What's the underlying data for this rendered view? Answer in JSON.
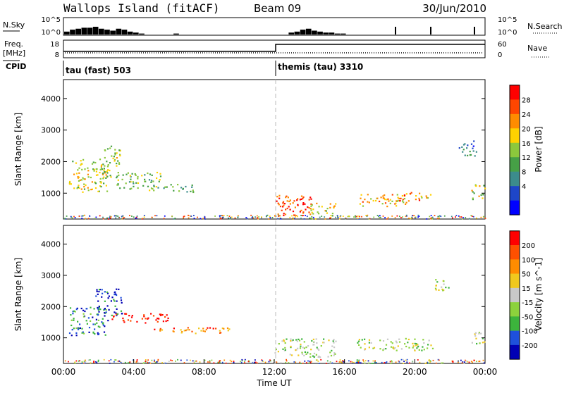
{
  "header": {
    "station": "Wallops Island (fitACF)",
    "beam": "Beam 09",
    "date": "30/Jun/2010"
  },
  "status_panels": {
    "nsky_label": "N.Sky",
    "nsearch_label": "N.Search",
    "nsky_ticks": [
      "10^5",
      "10^0"
    ],
    "nsearch_ticks": [
      "10^5",
      "10^0"
    ],
    "freq_label_line1": "Freq.",
    "freq_label_line2": "[MHz]",
    "freq_ticks": [
      "18",
      "8"
    ],
    "nave_label": "Nave",
    "nave_ticks": [
      "60",
      "0"
    ],
    "cpid_label": "CPID",
    "cpid_segments": [
      {
        "label": "tau (fast) 503",
        "start_hour": 0
      },
      {
        "label": "themis (tau) 3310",
        "start_hour": 12
      }
    ]
  },
  "colors": {
    "velocity_scale": [
      "#0000b4",
      "#1e50dc",
      "#3cb43c",
      "#8cd23c",
      "#c8c8c8",
      "#f0c81e",
      "#ff8c00",
      "#ff5000",
      "#ff0000"
    ],
    "power_scale": [
      "#0000ff",
      "#1e46c8",
      "#3c8c8c",
      "#46a046",
      "#8cc83c",
      "#ffd200",
      "#ff8c00",
      "#ff4600",
      "#ff0000"
    ]
  },
  "chart_data": [
    {
      "type": "heatmap",
      "quantity": "Power",
      "ylabel": "Slant Range [km]",
      "colorbar_label": "Power [dB]",
      "colorbar_ticks": [
        "28",
        "24",
        "20",
        "16",
        "12",
        "8",
        "4"
      ],
      "ylim": [
        180,
        4600
      ],
      "yticks": [
        "1000",
        "2000",
        "3000",
        "4000"
      ],
      "xlim_hours": [
        0,
        24
      ],
      "regions": [
        {
          "t0": 0.3,
          "t1": 2.5,
          "r0": 1050,
          "r1": 2100,
          "level": 0.55
        },
        {
          "t0": 2.2,
          "t1": 3.2,
          "r0": 1500,
          "r1": 2600,
          "level": 0.5
        },
        {
          "t0": 3.0,
          "t1": 5.5,
          "r0": 1100,
          "r1": 1700,
          "level": 0.45
        },
        {
          "t0": 5.5,
          "t1": 7.5,
          "r0": 1050,
          "r1": 1300,
          "level": 0.35
        },
        {
          "t0": 12.0,
          "t1": 14.2,
          "r0": 300,
          "r1": 1000,
          "level": 0.85
        },
        {
          "t0": 14.0,
          "t1": 15.5,
          "r0": 300,
          "r1": 700,
          "level": 0.6
        },
        {
          "t0": 16.7,
          "t1": 19.5,
          "r0": 600,
          "r1": 1000,
          "level": 0.65
        },
        {
          "t0": 19.0,
          "t1": 20.3,
          "r0": 700,
          "r1": 1050,
          "level": 0.8
        },
        {
          "t0": 20.3,
          "t1": 21.0,
          "r0": 800,
          "r1": 1000,
          "level": 0.6
        },
        {
          "t0": 23.2,
          "t1": 24.0,
          "r0": 800,
          "r1": 1300,
          "level": 0.55
        },
        {
          "t0": 22.5,
          "t1": 23.5,
          "r0": 2200,
          "r1": 2700,
          "level": 0.25
        }
      ]
    },
    {
      "type": "heatmap",
      "quantity": "Velocity",
      "ylabel": "Slant Range [km]",
      "colorbar_label": "Velocity [m s^-1]",
      "colorbar_ticks": [
        "200",
        "100",
        "50",
        "15",
        "-15",
        "-50",
        "-100",
        "-200"
      ],
      "ylim": [
        180,
        4600
      ],
      "yticks": [
        "1000",
        "2000",
        "3000",
        "4000"
      ],
      "xlim_hours": [
        0,
        24
      ],
      "xticks": [
        "00:00",
        "04:00",
        "08:00",
        "12:00",
        "16:00",
        "20:00",
        "00:00"
      ],
      "xlabel": "Time UT",
      "regions": [
        {
          "t0": 0.3,
          "t1": 2.5,
          "r0": 1100,
          "r1": 2000,
          "level": 0.2
        },
        {
          "t0": 1.8,
          "t1": 3.3,
          "r0": 1700,
          "r1": 2600,
          "level": 0.1
        },
        {
          "t0": 2.5,
          "t1": 6.0,
          "r0": 1500,
          "r1": 1800,
          "level": 0.95
        },
        {
          "t0": 5.0,
          "t1": 9.5,
          "r0": 1150,
          "r1": 1350,
          "level": 0.75
        },
        {
          "t0": 12.0,
          "t1": 15.5,
          "r0": 400,
          "r1": 1000,
          "level": 0.45
        },
        {
          "t0": 16.7,
          "t1": 21.0,
          "r0": 600,
          "r1": 1000,
          "level": 0.45
        },
        {
          "t0": 23.2,
          "t1": 24.0,
          "r0": 800,
          "r1": 1200,
          "level": 0.45
        },
        {
          "t0": 21.0,
          "t1": 22.0,
          "r0": 2500,
          "r1": 2900,
          "level": 0.45
        }
      ]
    }
  ],
  "nsky_bars": [
    3,
    5,
    6,
    7,
    7,
    8,
    6,
    5,
    4,
    6,
    5,
    3,
    2,
    1,
    0,
    0,
    0,
    0,
    0,
    1,
    0,
    0,
    0,
    0,
    0,
    0,
    0,
    0,
    0,
    0,
    0,
    0,
    0,
    0,
    0,
    0,
    0,
    0,
    0,
    2,
    3,
    5,
    6,
    4,
    3,
    2,
    2,
    1,
    1,
    0,
    0,
    0,
    0,
    0,
    0,
    0,
    0,
    0,
    0,
    0,
    0,
    0,
    0,
    0,
    0,
    0,
    0,
    0,
    0,
    0,
    0,
    0,
    0
  ]
}
